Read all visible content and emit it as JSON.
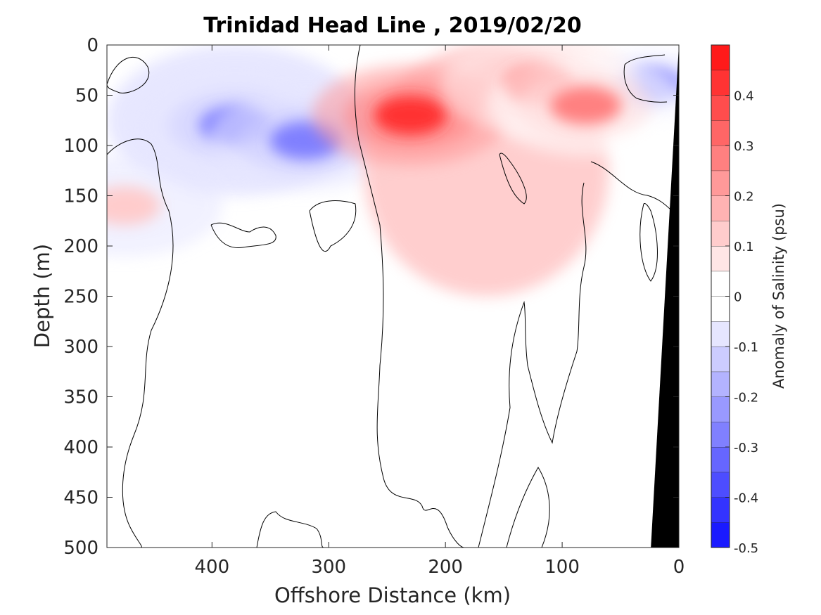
{
  "chart_data": {
    "type": "heatmap",
    "title": "Trinidad Head Line , 2019/02/20",
    "xlabel": "Offshore Distance (km)",
    "ylabel": "Depth (m)",
    "xlim": [
      490,
      0
    ],
    "ylim": [
      0,
      500
    ],
    "x_reversed": true,
    "y_reversed": true,
    "x_ticks": [
      "400",
      "300",
      "200",
      "100",
      "0"
    ],
    "x_tick_values": [
      400,
      300,
      200,
      100,
      0
    ],
    "y_ticks": [
      "0",
      "50",
      "100",
      "150",
      "200",
      "250",
      "300",
      "350",
      "400",
      "450",
      "500"
    ],
    "y_tick_values": [
      0,
      50,
      100,
      150,
      200,
      250,
      300,
      350,
      400,
      450,
      500
    ],
    "colorbar": {
      "label": "Anomaly of Salinity (psu)",
      "range": [
        -0.5,
        0.5
      ],
      "tick_labels": [
        "0.4",
        "0.3",
        "0.2",
        "0.1",
        "0",
        "-0.1",
        "-0.2",
        "-0.3",
        "-0.4",
        "-0.5"
      ],
      "tick_values": [
        0.4,
        0.3,
        0.2,
        0.1,
        0,
        -0.1,
        -0.2,
        -0.3,
        -0.4,
        -0.5
      ],
      "levels": [
        -0.5,
        -0.45,
        -0.4,
        -0.35,
        -0.3,
        -0.25,
        -0.2,
        -0.15,
        -0.1,
        -0.05,
        0,
        0.05,
        0.1,
        0.15,
        0.2,
        0.25,
        0.3,
        0.35,
        0.4,
        0.45,
        0.5
      ],
      "colors": [
        "#0000ff",
        "#1a1aff",
        "#3333ff",
        "#4d4dff",
        "#6666ff",
        "#8080ff",
        "#9999ff",
        "#b3b3ff",
        "#ccccff",
        "#e6e6ff",
        "#ffffff",
        "#ffffff",
        "#ffe6e6",
        "#ffcccc",
        "#ffb3b3",
        "#ff9999",
        "#ff8080",
        "#ff6666",
        "#ff4d4d",
        "#ff3333",
        "#ff1a1a",
        "#ff0000"
      ]
    },
    "features": [
      {
        "name": "Surface fresh anomaly offshore",
        "x": [
          490,
          270
        ],
        "depth": [
          0,
          150
        ],
        "value_min": -0.3
      },
      {
        "name": "Fresh core",
        "x": 380,
        "depth": 80,
        "value": -0.3
      },
      {
        "name": "Fresh core",
        "x": 320,
        "depth": 95,
        "value": -0.3
      },
      {
        "name": "Nearshore fresh patch",
        "x": 25,
        "depth": 40,
        "value": -0.25
      },
      {
        "name": "Salty anomaly",
        "x": [
          270,
          60
        ],
        "depth": [
          0,
          250
        ],
        "value_max": 0.4
      },
      {
        "name": "Salty core",
        "x": 230,
        "depth": 70,
        "value": 0.4
      },
      {
        "name": "Salty core",
        "x": 120,
        "depth": 40,
        "value": 0.3
      },
      {
        "name": "Salty core",
        "x": 80,
        "depth": 60,
        "value": 0.25
      },
      {
        "name": "Weak salty patch",
        "x": 475,
        "depth": 160,
        "value": 0.1
      }
    ],
    "bathymetry": {
      "color": "#000000",
      "points": [
        [
          0,
          0
        ],
        [
          24,
          500
        ],
        [
          0,
          500
        ]
      ]
    }
  }
}
